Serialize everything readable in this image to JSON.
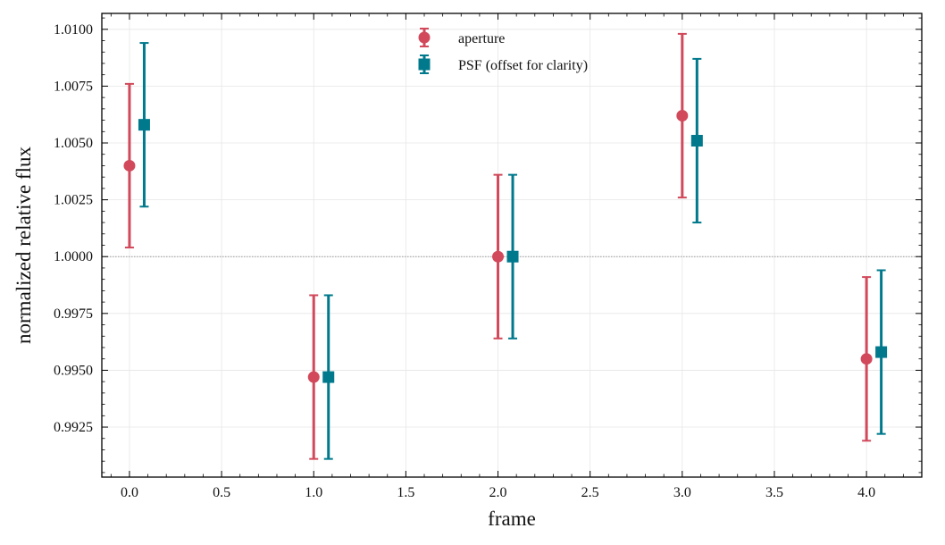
{
  "chart_data": {
    "type": "scatter",
    "xlabel": "frame",
    "ylabel": "normalized relative flux",
    "xlim": [
      -0.15,
      4.3
    ],
    "ylim": [
      0.9903,
      1.0107
    ],
    "xticks": [
      0.0,
      0.5,
      1.0,
      1.5,
      2.0,
      2.5,
      3.0,
      3.5,
      4.0
    ],
    "xtick_labels": [
      "0.0",
      "0.5",
      "1.0",
      "1.5",
      "2.0",
      "2.5",
      "3.0",
      "3.5",
      "4.0"
    ],
    "yticks": [
      0.9925,
      0.995,
      0.9975,
      1.0,
      1.0025,
      1.005,
      1.0075,
      1.01
    ],
    "ytick_labels": [
      "0.9925",
      "0.9950",
      "0.9975",
      "1.0000",
      "1.0025",
      "1.0050",
      "1.0075",
      "1.0100"
    ],
    "reference_line": 1.0,
    "grid": true,
    "legend_position": "top-center",
    "series": [
      {
        "name": "aperture",
        "marker": "circle",
        "color": "#d1495b",
        "x": [
          0.0,
          1.0,
          2.0,
          3.0,
          4.0
        ],
        "y": [
          1.004,
          0.9947,
          1.0,
          1.0062,
          0.9955
        ],
        "yerr": [
          0.0036,
          0.0036,
          0.0036,
          0.0036,
          0.0036
        ]
      },
      {
        "name": "PSF (offset for clarity)",
        "marker": "square",
        "color": "#00798c",
        "x": [
          0.08,
          1.08,
          2.08,
          3.08,
          4.08
        ],
        "y": [
          1.0058,
          0.9947,
          1.0,
          1.0051,
          0.9958
        ],
        "yerr": [
          0.0036,
          0.0036,
          0.0036,
          0.0036,
          0.0036
        ]
      }
    ]
  }
}
